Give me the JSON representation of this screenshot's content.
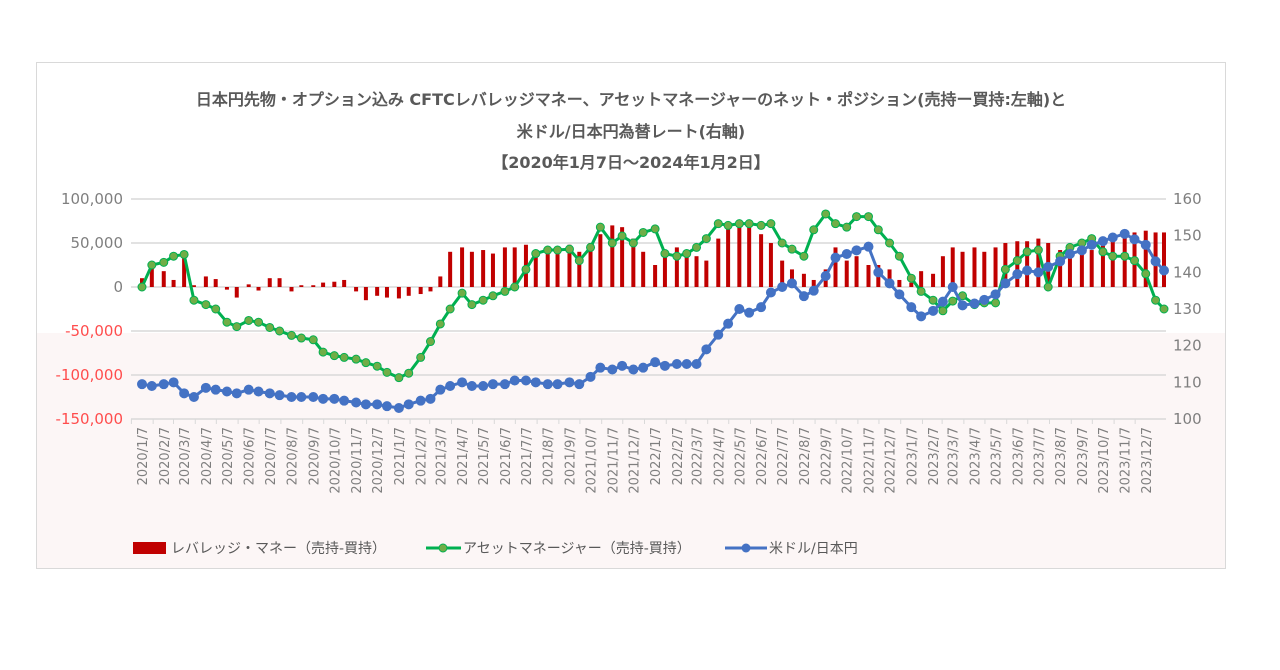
{
  "chart_data": {
    "type": "bar+line",
    "title": [
      "日本円先物・オプション込み  CFTCレバレッジマネー、アセットマネージャーのネット・ポジション(売持ー買持:左軸)と",
      "米ドル/日本円為替レート(右軸)",
      "【2020年1月7日～2024年1月2日】"
    ],
    "y_left": {
      "range": [
        -150000,
        100000
      ],
      "ticks": [
        100000,
        50000,
        0,
        -50000,
        -100000,
        -150000
      ],
      "tick_labels": [
        "100,000",
        "50,000",
        "0",
        "-50,000",
        "-100,000",
        "-150,000"
      ],
      "negative_color": "#ff4d4d"
    },
    "y_right": {
      "range": [
        100,
        160
      ],
      "ticks": [
        160,
        150,
        140,
        130,
        120,
        110,
        100
      ],
      "tick_labels": [
        "160",
        "150",
        "140",
        "130",
        "120",
        "110",
        "100"
      ]
    },
    "x_tick_labels": [
      "2020/1/7",
      "2020/2/7",
      "2020/3/7",
      "2020/4/7",
      "2020/5/7",
      "2020/6/7",
      "2020/7/7",
      "2020/8/7",
      "2020/9/7",
      "2020/10/7",
      "2020/11/7",
      "2020/12/7",
      "2021/1/7",
      "2021/2/7",
      "2021/3/7",
      "2021/4/7",
      "2021/5/7",
      "2021/6/7",
      "2021/7/7",
      "2021/8/7",
      "2021/9/7",
      "2021/10/7",
      "2021/11/7",
      "2021/12/7",
      "2022/1/7",
      "2022/2/7",
      "2022/3/7",
      "2022/4/7",
      "2022/5/7",
      "2022/6/7",
      "2022/7/7",
      "2022/8/7",
      "2022/9/7",
      "2022/10/7",
      "2022/11/7",
      "2022/12/7",
      "2023/1/7",
      "2023/2/7",
      "2023/3/7",
      "2023/4/7",
      "2023/5/7",
      "2023/6/7",
      "2023/7/7",
      "2023/8/7",
      "2023/9/7",
      "2023/10/7",
      "2023/11/7",
      "2023/12/7"
    ],
    "grid": true,
    "legend_position": "bottom",
    "series": [
      {
        "name": "レバレッジ・マネー（売持-買持）",
        "type": "bar",
        "axis": "left",
        "color": "#c00000",
        "values": [
          10000,
          25000,
          18000,
          8000,
          40000,
          2000,
          12000,
          9000,
          -3000,
          -12000,
          3000,
          -4000,
          10000,
          10000,
          -5000,
          2000,
          2000,
          5000,
          6000,
          8000,
          -5000,
          -15000,
          -10000,
          -12000,
          -13000,
          -10000,
          -8000,
          -5000,
          12000,
          40000,
          45000,
          40000,
          42000,
          38000,
          45000,
          45000,
          48000,
          40000,
          42000,
          45000,
          48000,
          40000,
          50000,
          60000,
          70000,
          68000,
          55000,
          40000,
          25000,
          35000,
          45000,
          40000,
          35000,
          30000,
          55000,
          68000,
          72000,
          68000,
          60000,
          50000,
          30000,
          20000,
          15000,
          8000,
          20000,
          45000,
          30000,
          35000,
          25000,
          25000,
          20000,
          8000,
          5000,
          18000,
          15000,
          35000,
          45000,
          40000,
          45000,
          40000,
          45000,
          50000,
          52000,
          52000,
          55000,
          50000,
          42000,
          45000,
          45000,
          42000,
          55000,
          60000,
          62000,
          62000,
          64000,
          62000,
          62000
        ]
      },
      {
        "name": "アセットマネージャー（売持-買持）",
        "type": "line",
        "axis": "left",
        "color": "#00b050",
        "marker_color": "#70ad47",
        "values": [
          0,
          25000,
          28000,
          35000,
          37000,
          -15000,
          -20000,
          -25000,
          -40000,
          -45000,
          -38000,
          -40000,
          -46000,
          -50000,
          -55000,
          -58000,
          -60000,
          -74000,
          -78000,
          -80000,
          -82000,
          -86000,
          -90000,
          -97000,
          -103000,
          -98000,
          -80000,
          -62000,
          -42000,
          -25000,
          -7000,
          -20000,
          -15000,
          -10000,
          -5000,
          0,
          20000,
          38000,
          42000,
          42000,
          43000,
          30000,
          45000,
          68000,
          50000,
          58000,
          50000,
          62000,
          66000,
          38000,
          35000,
          38000,
          45000,
          55000,
          72000,
          70000,
          72000,
          72000,
          70000,
          72000,
          50000,
          43000,
          35000,
          65000,
          83000,
          72000,
          68000,
          80000,
          80000,
          65000,
          50000,
          35000,
          10000,
          -5000,
          -15000,
          -27000,
          -16000,
          -10000,
          -20000,
          -18000,
          -18000,
          20000,
          30000,
          40000,
          42000,
          0,
          35000,
          45000,
          50000,
          55000,
          40000,
          35000,
          35000,
          30000,
          15000,
          -15000,
          -25000
        ]
      },
      {
        "name": "米ドル/日本円",
        "type": "line",
        "axis": "right",
        "color": "#4472c4",
        "values": [
          109.5,
          109,
          109.5,
          110,
          107,
          106,
          108.5,
          108,
          107.5,
          107,
          108,
          107.5,
          107,
          106.5,
          106,
          106,
          106,
          105.5,
          105.5,
          105,
          104.5,
          104,
          104,
          103.5,
          103,
          104,
          105,
          105.5,
          108,
          109,
          110,
          109,
          109,
          109.5,
          109.5,
          110.5,
          110.5,
          110,
          109.5,
          109.5,
          110,
          109.5,
          111.5,
          114,
          113.5,
          114.5,
          113.5,
          114,
          115.5,
          114.5,
          115,
          115,
          115,
          119,
          123,
          126,
          130,
          129,
          130.5,
          134.5,
          136,
          137,
          133.5,
          135,
          139,
          144,
          145,
          146,
          147,
          140,
          137,
          134,
          130.5,
          128,
          129.5,
          132,
          136,
          131,
          131.5,
          132.5,
          134,
          137,
          139.5,
          140.5,
          140,
          141.5,
          143,
          145,
          146,
          147.5,
          148.5,
          149.5,
          150.5,
          149,
          147.5,
          143,
          140.5
        ]
      }
    ],
    "dates": [
      "2020/1/7",
      "2020/1/21",
      "2020/2/7",
      "2020/2/21",
      "2020/3/7",
      "2020/3/21",
      "2020/4/7",
      "2020/4/21",
      "2020/5/7",
      "2020/5/21",
      "2020/6/7",
      "2020/6/21",
      "2020/7/7",
      "2020/7/21",
      "2020/8/7",
      "2020/8/21",
      "2020/9/7",
      "2020/9/21",
      "2020/10/7",
      "2020/10/21",
      "2020/11/7",
      "2020/11/21",
      "2020/12/7",
      "2020/12/21",
      "2021/1/7",
      "2021/1/21",
      "2021/2/7",
      "2021/2/21",
      "2021/3/7",
      "2021/3/21",
      "2021/4/7",
      "2021/4/21",
      "2021/5/7",
      "2021/5/21",
      "2021/6/7",
      "2021/6/21",
      "2021/7/7",
      "2021/7/21",
      "2021/8/7",
      "2021/8/21",
      "2021/9/7",
      "2021/9/21",
      "2021/10/7",
      "2021/10/21",
      "2021/11/7",
      "2021/11/21",
      "2021/12/7",
      "2021/12/21",
      "2022/1/7",
      "2022/1/21",
      "2022/2/7",
      "2022/2/21",
      "2022/3/7",
      "2022/3/21",
      "2022/4/7",
      "2022/4/21",
      "2022/5/7",
      "2022/5/21",
      "2022/6/7",
      "2022/6/21",
      "2022/7/7",
      "2022/7/21",
      "2022/8/7",
      "2022/8/21",
      "2022/9/7",
      "2022/9/21",
      "2022/10/7",
      "2022/10/21",
      "2022/11/7",
      "2022/11/21",
      "2022/12/7",
      "2022/12/21",
      "2023/1/7",
      "2023/1/21",
      "2023/2/7",
      "2023/2/21",
      "2023/3/7",
      "2023/3/21",
      "2023/4/7",
      "2023/4/21",
      "2023/5/7",
      "2023/5/21",
      "2023/6/7",
      "2023/6/21",
      "2023/7/7",
      "2023/7/21",
      "2023/8/7",
      "2023/8/21",
      "2023/9/7",
      "2023/9/21",
      "2023/10/7",
      "2023/10/21",
      "2023/11/7",
      "2023/11/21",
      "2023/12/7",
      "2023/12/21",
      "2024/1/2"
    ]
  }
}
